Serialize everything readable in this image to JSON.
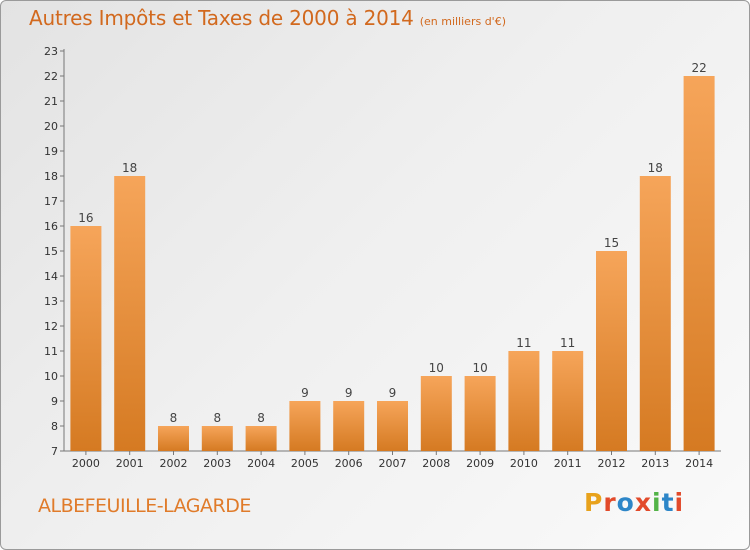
{
  "title": "Autres Impôts et Taxes de 2000 à 2014",
  "subtitle": "(en milliers d'€)",
  "commune": "ALBEFEUILLE-LAGARDE",
  "logo": {
    "text": "Proxiti",
    "colors": [
      "#e8a21c",
      "#e24a2a",
      "#2d86c8",
      "#e24a2a",
      "#52b347",
      "#2d86c8",
      "#e24a2a"
    ]
  },
  "colors": {
    "bar_light": "#f6a55a",
    "bar_dark": "#d57a22",
    "title": "#d2691e"
  },
  "chart_data": {
    "type": "bar",
    "title": "Autres Impôts et Taxes de 2000 à 2014",
    "subtitle": "(en milliers d'€)",
    "categories": [
      "2000",
      "2001",
      "2002",
      "2003",
      "2004",
      "2005",
      "2006",
      "2007",
      "2008",
      "2009",
      "2010",
      "2011",
      "2012",
      "2013",
      "2014"
    ],
    "values": [
      16,
      18,
      8,
      8,
      8,
      9,
      9,
      9,
      10,
      10,
      11,
      11,
      15,
      18,
      22
    ],
    "ylim": [
      7,
      23
    ],
    "yticks": [
      7,
      8,
      9,
      10,
      11,
      12,
      13,
      14,
      15,
      16,
      17,
      18,
      19,
      20,
      21,
      22,
      23
    ],
    "grid": false,
    "legend": "none"
  }
}
